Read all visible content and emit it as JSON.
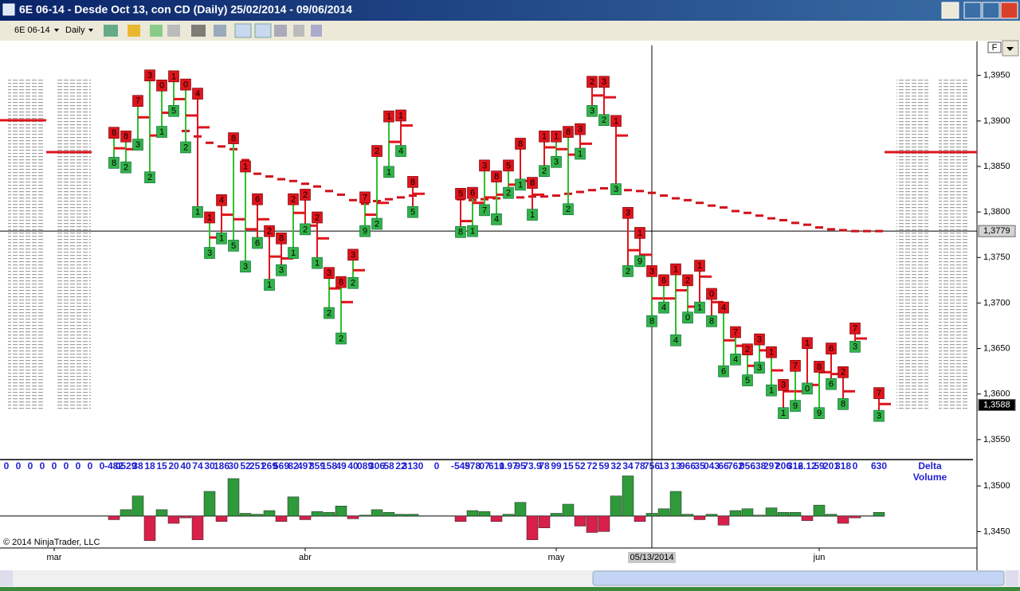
{
  "window": {
    "title": "6E 06-14 - Desde Oct 13, con CD (Daily)  25/02/2014 - 09/06/2014",
    "toolbar": {
      "instrument": "6E 06-14",
      "interval": "Daily"
    },
    "panel_button": "F",
    "copyright": "© 2014 NinjaTrader, LLC"
  },
  "chart_data": {
    "type": "range",
    "categories": [
      null,
      null,
      null,
      null,
      "mar",
      null,
      null,
      null,
      null,
      null,
      null,
      null,
      null,
      null,
      null,
      null,
      null,
      null,
      null,
      null,
      null,
      null,
      null,
      null,
      null,
      "abr",
      null,
      null,
      null,
      null,
      null,
      null,
      null,
      null,
      null,
      null,
      null,
      null,
      null,
      null,
      null,
      null,
      null,
      null,
      null,
      null,
      "may",
      null,
      null,
      null,
      null,
      null,
      null,
      null,
      null,
      null,
      null,
      null,
      null,
      null,
      null,
      null,
      null,
      null,
      null,
      null,
      null,
      null,
      "jun",
      null,
      null,
      null,
      null,
      null
    ],
    "high": [
      null,
      null,
      null,
      null,
      null,
      null,
      null,
      null,
      null,
      1.3887,
      1.3883,
      1.3922,
      1.395,
      1.3939,
      1.3949,
      1.394,
      1.393,
      1.3794,
      1.3813,
      1.3881,
      1.385,
      1.3814,
      1.3779,
      1.3771,
      1.3814,
      1.3819,
      1.3794,
      1.3733,
      1.3723,
      1.3753,
      1.3816,
      1.3867,
      1.3905,
      1.3906,
      1.3833,
      null,
      null,
      null,
      1.382,
      1.3821,
      1.3851,
      1.3839,
      1.3851,
      1.3875,
      1.3832,
      1.3883,
      1.3883,
      1.3888,
      1.3891,
      1.3943,
      1.3943,
      1.39,
      1.3799,
      1.3777,
      1.3735,
      1.3725,
      1.3737,
      1.3725,
      1.3741,
      1.371,
      1.3695,
      1.3668,
      1.3649,
      1.366,
      1.3646,
      1.361,
      1.3631,
      1.3656,
      1.363,
      1.365,
      1.3624,
      1.3672,
      null,
      1.3601
    ],
    "low": [
      null,
      null,
      null,
      null,
      null,
      null,
      null,
      null,
      null,
      1.3854,
      1.3849,
      1.3874,
      1.3838,
      1.3888,
      1.3911,
      1.3871,
      1.38,
      1.3755,
      1.3771,
      1.3763,
      1.374,
      1.3766,
      1.372,
      1.3736,
      1.3755,
      1.3781,
      1.3744,
      1.3689,
      1.3661,
      1.3722,
      1.3779,
      1.3787,
      1.3844,
      1.3867,
      1.38,
      null,
      null,
      null,
      1.3778,
      1.3779,
      1.3802,
      1.3792,
      1.3821,
      1.383,
      1.3797,
      1.3845,
      1.3855,
      1.3803,
      1.3864,
      1.3911,
      1.3901,
      1.3825,
      1.3735,
      1.3746,
      1.368,
      1.3695,
      1.3659,
      1.3684,
      1.3695,
      1.368,
      1.3625,
      1.3638,
      1.3615,
      1.3629,
      1.3604,
      1.3579,
      1.3587,
      1.3606,
      1.3579,
      1.3611,
      1.3589,
      1.3652,
      null,
      1.3576
    ],
    "close": [
      null,
      null,
      null,
      null,
      null,
      null,
      null,
      null,
      null,
      1.387,
      1.3869,
      1.3904,
      1.3884,
      1.3909,
      1.3924,
      1.3906,
      1.3893,
      1.3772,
      1.3797,
      1.3792,
      1.3781,
      1.3792,
      1.3751,
      1.3749,
      1.3799,
      1.3785,
      1.3771,
      1.3716,
      1.3701,
      1.3736,
      1.3797,
      1.381,
      1.3877,
      1.3895,
      1.382,
      null,
      null,
      null,
      1.379,
      1.381,
      1.3816,
      1.3819,
      1.383,
      1.3834,
      1.3819,
      1.3871,
      1.3869,
      1.3863,
      1.3875,
      1.3928,
      1.3926,
      1.3884,
      1.3758,
      1.3753,
      1.3705,
      1.3705,
      1.3714,
      1.3696,
      1.3729,
      1.3701,
      1.3659,
      1.3653,
      1.3631,
      1.3648,
      1.3626,
      1.3603,
      1.3603,
      1.361,
      1.3624,
      1.3622,
      1.3603,
      1.3661,
      null,
      1.3589
    ],
    "top_labels": [
      null,
      null,
      null,
      null,
      null,
      null,
      null,
      null,
      null,
      8,
      8,
      7,
      3,
      0,
      1,
      0,
      4,
      1,
      4,
      8,
      1,
      6,
      2,
      8,
      2,
      2,
      2,
      3,
      8,
      3,
      7,
      2,
      1,
      1,
      8,
      null,
      null,
      null,
      5,
      6,
      3,
      8,
      5,
      8,
      8,
      1,
      1,
      8,
      3,
      2,
      3,
      1,
      3,
      1,
      3,
      6,
      1,
      2,
      1,
      0,
      4,
      7,
      2,
      3,
      1,
      3,
      7,
      1,
      8,
      6,
      2,
      7,
      null,
      7
    ],
    "bottom_labels": [
      null,
      null,
      null,
      null,
      null,
      null,
      null,
      null,
      null,
      8,
      2,
      3,
      2,
      1,
      5,
      2,
      1,
      3,
      1,
      5,
      3,
      6,
      1,
      3,
      1,
      2,
      1,
      2,
      2,
      2,
      9,
      2,
      1,
      4,
      5,
      null,
      null,
      null,
      8,
      1,
      7,
      4,
      2,
      1,
      1,
      2,
      3,
      2,
      1,
      3,
      2,
      3,
      2,
      9,
      8,
      4,
      4,
      0,
      1,
      8,
      6,
      4,
      5,
      3,
      1,
      1,
      9,
      0,
      9,
      6,
      8,
      3,
      null,
      3
    ],
    "line_colors": [
      null,
      null,
      null,
      null,
      null,
      null,
      null,
      null,
      null,
      "#2fc02f",
      "#2fc02f",
      "#2fc02f",
      "#2fc02f",
      "#2fc02f",
      "#2fc02f",
      "#2fc02f",
      "#e0141c",
      "#2fc02f",
      "#e0141c",
      "#2fc02f",
      "#2fc02f",
      "#e0141c",
      "#e0141c",
      "#e0141c",
      "#2fc02f",
      "#e0141c",
      "#e0141c",
      "#2fc02f",
      "#2fc02f",
      "#2fc02f",
      "#2fc02f",
      "#2fc02f",
      "#2fc02f",
      "#e0141c",
      "#e0141c",
      null,
      null,
      null,
      "#e0141c",
      "#2fc02f",
      "#2fc02f",
      "#2fc02f",
      "#2fc02f",
      "#e0141c",
      "#e0141c",
      "#e0141c",
      "#2fc02f",
      "#2fc02f",
      "#e0141c",
      "#e0141c",
      "#e0141c",
      "#e0141c",
      "#e0141c",
      "#e0141c",
      "#2fc02f",
      "#2fc02f",
      "#2fc02f",
      "#2fc02f",
      "#e0141c",
      "#e0141c",
      "#2fc02f",
      "#2fc02f",
      "#2fc02f",
      "#2fc02f",
      "#2fc02f",
      "#e0141c",
      "#2fc02f",
      "#e0141c",
      "#2fc02f",
      "#e0141c",
      "#e0141c",
      "#e0141c",
      null,
      "#e0141c"
    ],
    "top_box_color": "#e0141c",
    "bottom_box_color": "#33b249",
    "close_color": "#e0141c",
    "ma": {
      "color": "#d0101a",
      "values": [
        null,
        null,
        null,
        null,
        null,
        null,
        null,
        null,
        null,
        null,
        null,
        null,
        null,
        null,
        null,
        1.3889,
        1.3883,
        1.3876,
        1.3872,
        1.3869,
        1.3857,
        1.3842,
        1.3839,
        1.3836,
        1.3834,
        1.3831,
        1.3828,
        1.3823,
        1.3819,
        1.3813,
        1.3809,
        1.3812,
        1.3814,
        1.3816,
        1.3818,
        null,
        null,
        null,
        1.3814,
        1.3813,
        1.3814,
        1.3815,
        1.3816,
        1.3816,
        1.3817,
        1.3817,
        1.3818,
        1.382,
        1.3822,
        1.3824,
        1.3826,
        1.3825,
        1.3824,
        1.3823,
        1.3821,
        1.3818,
        1.3815,
        1.3813,
        1.381,
        1.3807,
        1.3805,
        1.3801,
        1.3799,
        1.3796,
        1.3793,
        1.3791,
        1.3788,
        1.3786,
        1.3783,
        1.3781,
        1.378,
        1.3779,
        1.3779,
        1.3779
      ]
    },
    "ylim": [
      1.3528,
      1.3983
    ],
    "yticks": [
      {
        "value": 1.395,
        "label": "1,3950"
      },
      {
        "value": 1.39,
        "label": "1,3900"
      },
      {
        "value": 1.385,
        "label": "1,3850"
      },
      {
        "value": 1.38,
        "label": "1,3800"
      },
      {
        "value": 1.375,
        "label": "1,3750"
      },
      {
        "value": 1.37,
        "label": "1,3700"
      },
      {
        "value": 1.365,
        "label": "1,3650"
      },
      {
        "value": 1.36,
        "label": "1,3600"
      },
      {
        "value": 1.355,
        "label": "1,3550"
      }
    ],
    "price_markers": [
      {
        "value": 1.3779,
        "label": "1,3779"
      },
      {
        "value": 1.3588,
        "label": "1,3588"
      }
    ],
    "crosshair": {
      "index": 54,
      "label": "05/13/2014"
    }
  },
  "delta_panel": {
    "title": [
      "Delta",
      "Volume"
    ],
    "labels": [
      0,
      0,
      0,
      0,
      0,
      0,
      0,
      0,
      0,
      "-482",
      "0529",
      "38",
      "18",
      "15",
      "20",
      "40",
      "74",
      "30",
      "186",
      "30",
      "52",
      "251",
      "269",
      "569",
      "82",
      "497",
      "859",
      "158",
      "49",
      "40",
      "089",
      "306",
      "58",
      "22",
      "3130",
      null,
      "0",
      null,
      "-549",
      "578",
      "07",
      "610",
      "1.97",
      "95",
      "73.9",
      "78",
      "99",
      "15",
      "52",
      "72",
      "59",
      "32",
      "34",
      "78",
      "756",
      "13",
      "13",
      "966",
      "35",
      "043",
      "66",
      "762",
      "056",
      ".38",
      "297",
      "206",
      "312",
      "6.12",
      "59",
      "201",
      "318",
      "0",
      null,
      "630"
    ],
    "zero_line": 1.3467,
    "bars": [
      null,
      null,
      null,
      null,
      null,
      null,
      null,
      null,
      null,
      1.3463,
      1.3474,
      1.3489,
      1.344,
      1.3474,
      1.3459,
      1.3465,
      1.3441,
      1.3494,
      1.3461,
      1.3508,
      1.347,
      1.3469,
      1.3473,
      1.3461,
      1.3488,
      1.3463,
      1.3472,
      1.3471,
      1.3478,
      1.3464,
      1.3468,
      1.3474,
      1.3471,
      1.3469,
      1.3469,
      null,
      null,
      null,
      1.3461,
      1.3473,
      1.3472,
      1.3461,
      1.3469,
      1.3482,
      1.3441,
      1.3454,
      1.347,
      1.348,
      1.3456,
      1.3449,
      1.345,
      1.3489,
      1.3511,
      1.3461,
      1.347,
      1.3475,
      1.3494,
      1.3469,
      1.3463,
      1.3469,
      1.3457,
      1.3473,
      1.3475,
      1.3468,
      1.3476,
      1.3471,
      1.3471,
      1.3462,
      1.3479,
      1.3469,
      1.3459,
      1.3465,
      null,
      1.3471
    ],
    "up_color": "#2e9a3a",
    "down_color": "#d8204a",
    "ylim": [
      1.3432,
      1.3528
    ],
    "yticks": [
      {
        "value": 1.35,
        "label": "1,3500"
      },
      {
        "value": 1.345,
        "label": "1,3450"
      }
    ]
  }
}
